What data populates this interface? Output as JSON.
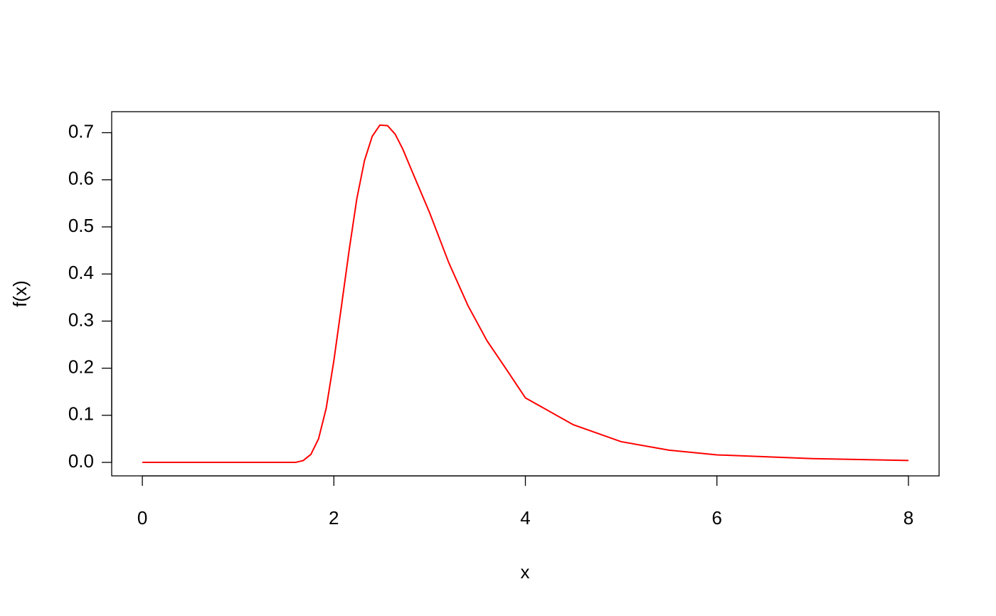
{
  "chart_data": {
    "type": "line",
    "x_label": "x",
    "y_label": "f(x)",
    "x": [
      0,
      1.6,
      1.68,
      1.76,
      1.84,
      1.92,
      2.0,
      2.08,
      2.16,
      2.24,
      2.32,
      2.4,
      2.48,
      2.56,
      2.64,
      2.72,
      2.8,
      3.0,
      3.2,
      3.4,
      3.6,
      3.8,
      4.0,
      4.5,
      5.0,
      5.5,
      6.0,
      7.0,
      8.0
    ],
    "series": [
      {
        "color": "#ff0000",
        "values": [
          0,
          0,
          0.004,
          0.017,
          0.05,
          0.115,
          0.216,
          0.333,
          0.451,
          0.56,
          0.641,
          0.692,
          0.716,
          0.715,
          0.697,
          0.665,
          0.626,
          0.53,
          0.424,
          0.333,
          0.258,
          0.198,
          0.137,
          0.08,
          0.044,
          0.026,
          0.016,
          0.008,
          0.004
        ]
      }
    ],
    "xlim": [
      -0.32,
      8.32
    ],
    "ylim": [
      -0.0286,
      0.7446
    ],
    "xticks": [
      0,
      2,
      4,
      6,
      8
    ],
    "yticks": [
      {
        "value": 0,
        "label": "0.0"
      },
      {
        "value": 0.1,
        "label": "0.1"
      },
      {
        "value": 0.2,
        "label": "0.2"
      },
      {
        "value": 0.3,
        "label": "0.3"
      },
      {
        "value": 0.4,
        "label": "0.4"
      },
      {
        "value": 0.5,
        "label": "0.5"
      },
      {
        "value": 0.6,
        "label": "0.6"
      },
      {
        "value": 0.7,
        "label": "0.7"
      }
    ]
  }
}
